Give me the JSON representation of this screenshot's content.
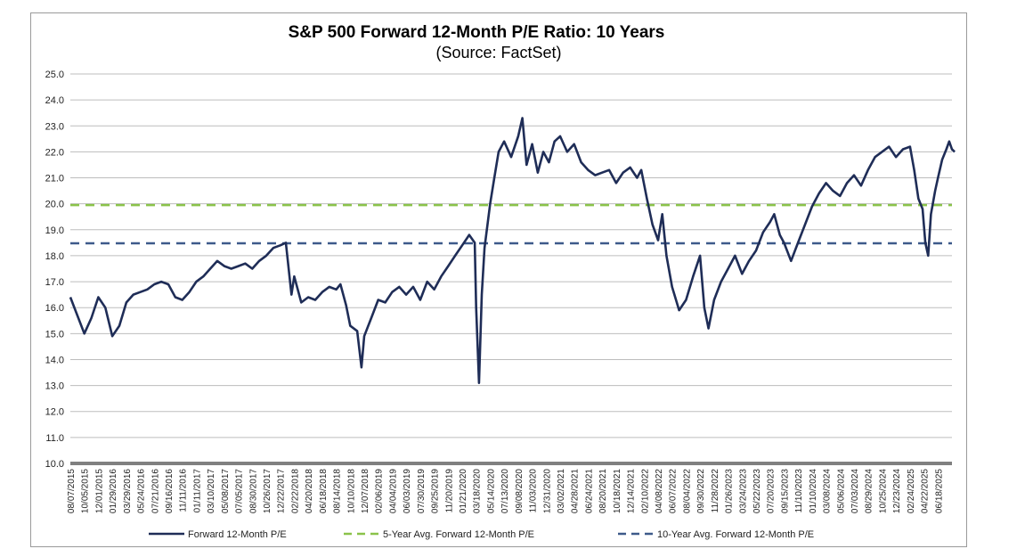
{
  "chart_data": {
    "type": "line",
    "title": "S&P 500 Forward 12-Month P/E Ratio: 10 Years",
    "subtitle": "(Source: FactSet)",
    "xlabel": "",
    "ylabel": "",
    "ylim": [
      10.0,
      25.0
    ],
    "y_ticks": [
      "10.0",
      "11.0",
      "12.0",
      "13.0",
      "14.0",
      "15.0",
      "16.0",
      "17.0",
      "18.0",
      "19.0",
      "20.0",
      "21.0",
      "22.0",
      "23.0",
      "24.0",
      "25.0"
    ],
    "x_tick_labels": [
      "08/07/2015",
      "10/05/2015",
      "12/01/2015",
      "01/29/2016",
      "03/29/2016",
      "05/24/2016",
      "07/21/2016",
      "09/16/2016",
      "11/11/2016",
      "01/11/2017",
      "03/10/2017",
      "05/08/2017",
      "07/05/2017",
      "08/30/2017",
      "10/26/2017",
      "12/22/2017",
      "02/22/2018",
      "04/20/2018",
      "06/18/2018",
      "08/14/2018",
      "10/10/2018",
      "12/07/2018",
      "02/06/2019",
      "04/04/2019",
      "06/03/2019",
      "07/30/2019",
      "09/25/2019",
      "11/20/2019",
      "01/21/2020",
      "03/18/2020",
      "05/14/2020",
      "07/13/2020",
      "09/08/2020",
      "11/03/2020",
      "12/31/2020",
      "03/02/2021",
      "04/28/2021",
      "06/24/2021",
      "08/20/2021",
      "10/18/2021",
      "12/14/2021",
      "02/10/2022",
      "04/08/2022",
      "06/07/2022",
      "08/04/2022",
      "09/30/2022",
      "11/28/2022",
      "01/26/2023",
      "03/24/2023",
      "05/22/2023",
      "07/20/2023",
      "09/15/2023",
      "11/10/2023",
      "01/10/2024",
      "03/08/2024",
      "05/06/2024",
      "07/03/2024",
      "08/29/2024",
      "10/25/2024",
      "12/23/2024",
      "02/24/2025",
      "04/22/2025",
      "06/18/2025"
    ],
    "grid": true,
    "legend_position": "bottom",
    "series": [
      {
        "name": "Forward 12-Month P/E",
        "color": "#1f2d57",
        "style": "solid",
        "points": [
          [
            0,
            16.4
          ],
          [
            1,
            15.0
          ],
          [
            1.5,
            15.6
          ],
          [
            2,
            16.4
          ],
          [
            2.5,
            16.0
          ],
          [
            3,
            14.9
          ],
          [
            3.5,
            15.3
          ],
          [
            4,
            16.2
          ],
          [
            4.5,
            16.5
          ],
          [
            5,
            16.6
          ],
          [
            5.5,
            16.7
          ],
          [
            6,
            16.9
          ],
          [
            6.5,
            17.0
          ],
          [
            7,
            16.9
          ],
          [
            7.5,
            16.4
          ],
          [
            8,
            16.3
          ],
          [
            8.5,
            16.6
          ],
          [
            9,
            17.0
          ],
          [
            9.5,
            17.2
          ],
          [
            10,
            17.5
          ],
          [
            10.5,
            17.8
          ],
          [
            11,
            17.6
          ],
          [
            11.5,
            17.5
          ],
          [
            12,
            17.6
          ],
          [
            12.5,
            17.7
          ],
          [
            13,
            17.5
          ],
          [
            13.5,
            17.8
          ],
          [
            14,
            18.0
          ],
          [
            14.5,
            18.3
          ],
          [
            15,
            18.4
          ],
          [
            15.4,
            18.5
          ],
          [
            15.8,
            16.5
          ],
          [
            16,
            17.2
          ],
          [
            16.5,
            16.2
          ],
          [
            17,
            16.4
          ],
          [
            17.5,
            16.3
          ],
          [
            18,
            16.6
          ],
          [
            18.5,
            16.8
          ],
          [
            19,
            16.7
          ],
          [
            19.3,
            16.9
          ],
          [
            19.7,
            16.1
          ],
          [
            20,
            15.3
          ],
          [
            20.5,
            15.1
          ],
          [
            20.8,
            13.7
          ],
          [
            21,
            14.9
          ],
          [
            21.5,
            15.6
          ],
          [
            22,
            16.3
          ],
          [
            22.5,
            16.2
          ],
          [
            23,
            16.6
          ],
          [
            23.5,
            16.8
          ],
          [
            24,
            16.5
          ],
          [
            24.5,
            16.8
          ],
          [
            25,
            16.3
          ],
          [
            25.5,
            17.0
          ],
          [
            26,
            16.7
          ],
          [
            26.5,
            17.2
          ],
          [
            27,
            17.6
          ],
          [
            27.5,
            18.0
          ],
          [
            28,
            18.4
          ],
          [
            28.5,
            18.8
          ],
          [
            28.9,
            18.5
          ],
          [
            29,
            16.0
          ],
          [
            29.2,
            13.1
          ],
          [
            29.4,
            16.5
          ],
          [
            29.6,
            18.3
          ],
          [
            30,
            20.0
          ],
          [
            30.3,
            21.0
          ],
          [
            30.6,
            22.0
          ],
          [
            31,
            22.4
          ],
          [
            31.5,
            21.8
          ],
          [
            32,
            22.6
          ],
          [
            32.3,
            23.3
          ],
          [
            32.6,
            21.5
          ],
          [
            33,
            22.3
          ],
          [
            33.4,
            21.2
          ],
          [
            33.8,
            22.0
          ],
          [
            34.2,
            21.6
          ],
          [
            34.6,
            22.4
          ],
          [
            35,
            22.6
          ],
          [
            35.5,
            22.0
          ],
          [
            36,
            22.3
          ],
          [
            36.5,
            21.6
          ],
          [
            37,
            21.3
          ],
          [
            37.5,
            21.1
          ],
          [
            38,
            21.2
          ],
          [
            38.5,
            21.3
          ],
          [
            39,
            20.8
          ],
          [
            39.5,
            21.2
          ],
          [
            40,
            21.4
          ],
          [
            40.5,
            21.0
          ],
          [
            40.8,
            21.3
          ],
          [
            41.2,
            20.2
          ],
          [
            41.6,
            19.2
          ],
          [
            42,
            18.6
          ],
          [
            42.3,
            19.6
          ],
          [
            42.6,
            18.0
          ],
          [
            43,
            16.8
          ],
          [
            43.5,
            15.9
          ],
          [
            44,
            16.3
          ],
          [
            44.5,
            17.2
          ],
          [
            45,
            18.0
          ],
          [
            45.3,
            16.0
          ],
          [
            45.6,
            15.2
          ],
          [
            46,
            16.3
          ],
          [
            46.5,
            17.0
          ],
          [
            47,
            17.5
          ],
          [
            47.5,
            18.0
          ],
          [
            48,
            17.3
          ],
          [
            48.5,
            17.8
          ],
          [
            49,
            18.2
          ],
          [
            49.5,
            18.9
          ],
          [
            50,
            19.3
          ],
          [
            50.3,
            19.6
          ],
          [
            50.7,
            18.8
          ],
          [
            51,
            18.5
          ],
          [
            51.5,
            17.8
          ],
          [
            52,
            18.5
          ],
          [
            52.5,
            19.2
          ],
          [
            53,
            19.9
          ],
          [
            53.5,
            20.4
          ],
          [
            54,
            20.8
          ],
          [
            54.5,
            20.5
          ],
          [
            55,
            20.3
          ],
          [
            55.5,
            20.8
          ],
          [
            56,
            21.1
          ],
          [
            56.5,
            20.7
          ],
          [
            57,
            21.3
          ],
          [
            57.5,
            21.8
          ],
          [
            58,
            22.0
          ],
          [
            58.5,
            22.2
          ],
          [
            59,
            21.8
          ],
          [
            59.5,
            22.1
          ],
          [
            60,
            22.2
          ],
          [
            60.3,
            21.3
          ],
          [
            60.6,
            20.2
          ],
          [
            60.9,
            19.8
          ],
          [
            61.1,
            18.5
          ],
          [
            61.3,
            18.0
          ],
          [
            61.5,
            19.6
          ],
          [
            61.8,
            20.5
          ],
          [
            62,
            21.0
          ],
          [
            62.3,
            21.7
          ],
          [
            62.6,
            22.1
          ],
          [
            62.8,
            22.4
          ],
          [
            63,
            22.1
          ],
          [
            63.2,
            22.0
          ]
        ]
      },
      {
        "name": "5-Year Avg. Forward 12-Month P/E",
        "color": "#8bc34a",
        "style": "dashed",
        "value": 19.95
      },
      {
        "name": "10-Year Avg. Forward 12-Month P/E",
        "color": "#3e5a8a",
        "style": "dashed",
        "value": 18.48
      }
    ]
  }
}
